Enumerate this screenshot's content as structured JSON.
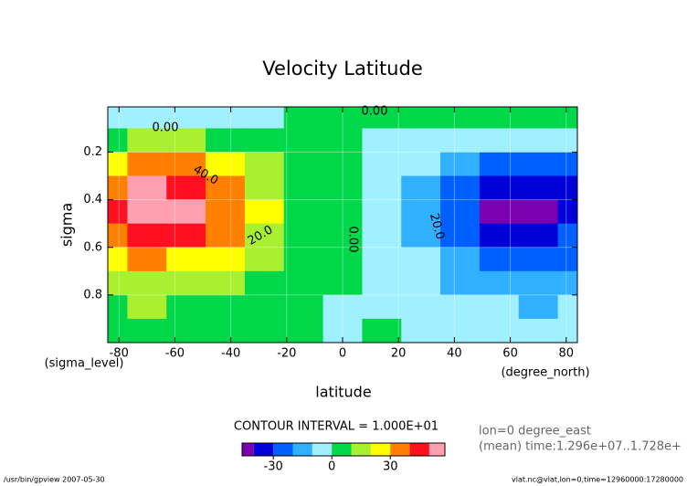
{
  "chart_data": {
    "type": "contour",
    "title": "Velocity Latitude",
    "x_label": "latitude",
    "x_unit": "(degree_north)",
    "y_label": "sigma",
    "y_unit": "(sigma_level)",
    "x": [
      -84,
      -70,
      -56,
      -42,
      -28,
      -14,
      0,
      14,
      28,
      42,
      56,
      70,
      84
    ],
    "y": [
      0.05,
      0.15,
      0.25,
      0.35,
      0.45,
      0.55,
      0.65,
      0.75,
      0.85,
      0.95
    ],
    "values": [
      [
        -5,
        -5,
        -3,
        -2,
        -2,
        2,
        3,
        3,
        2,
        2,
        2,
        2,
        2
      ],
      [
        8,
        12,
        10,
        8,
        5,
        3,
        2,
        -2,
        -3,
        -5,
        -6,
        -6,
        -5
      ],
      [
        25,
        35,
        33,
        25,
        12,
        4,
        2,
        -3,
        -8,
        -18,
        -25,
        -28,
        -22
      ],
      [
        38,
        50,
        48,
        35,
        18,
        5,
        1,
        -4,
        -12,
        -28,
        -38,
        -40,
        -33
      ],
      [
        42,
        55,
        52,
        38,
        20,
        6,
        1,
        -4,
        -13,
        -30,
        -42,
        -45,
        -36
      ],
      [
        35,
        45,
        42,
        30,
        15,
        4,
        0,
        -3,
        -11,
        -25,
        -35,
        -38,
        -30
      ],
      [
        25,
        30,
        28,
        20,
        10,
        3,
        0,
        -2,
        -8,
        -18,
        -25,
        -27,
        -22
      ],
      [
        15,
        18,
        16,
        12,
        5,
        1,
        0,
        -1,
        -5,
        -12,
        -16,
        -17,
        -14
      ],
      [
        8,
        10,
        9,
        6,
        3,
        0,
        -1,
        -1,
        -3,
        -7,
        -10,
        -11,
        -8
      ],
      [
        3,
        4,
        4,
        2,
        1,
        0,
        -1,
        0,
        -1,
        -3,
        -4,
        -5,
        -3
      ]
    ],
    "xlim": [
      -84,
      84
    ],
    "xticks": [
      -80,
      -60,
      -40,
      -20,
      0,
      20,
      40,
      60,
      80
    ],
    "ylim": [
      0.01,
      1.0
    ],
    "y_reversed": true,
    "yticks": [
      0.2,
      0.4,
      0.6,
      0.8
    ],
    "grid": true,
    "levels": [
      -50,
      -40,
      -30,
      -20,
      -10,
      0,
      10,
      20,
      30,
      40,
      50,
      60
    ],
    "colors": [
      "#7a00b0",
      "#0000d8",
      "#0060ff",
      "#30b0ff",
      "#a0f0ff",
      "#00d84a",
      "#a8f030",
      "#ffff00",
      "#ff8000",
      "#ff1020",
      "#ffa0b0"
    ],
    "colorbar_lim": [
      -46,
      58
    ],
    "colorbar_ticks": [
      -30,
      0,
      30
    ],
    "contour_labels": [
      "0.00",
      "0.00",
      "40.0",
      "20.0",
      "0.00",
      "20.0"
    ],
    "contour_interval_text": "CONTOUR INTERVAL = 1.000E+01",
    "info": [
      "lon=0 degree_east",
      "(mean) time:1.296e+07..1.728e+"
    ],
    "footer_left": "/usr/bin/gpview  2007-05-30",
    "footer_right": "vlat.nc@vlat,lon=0,time=12960000:17280000"
  }
}
